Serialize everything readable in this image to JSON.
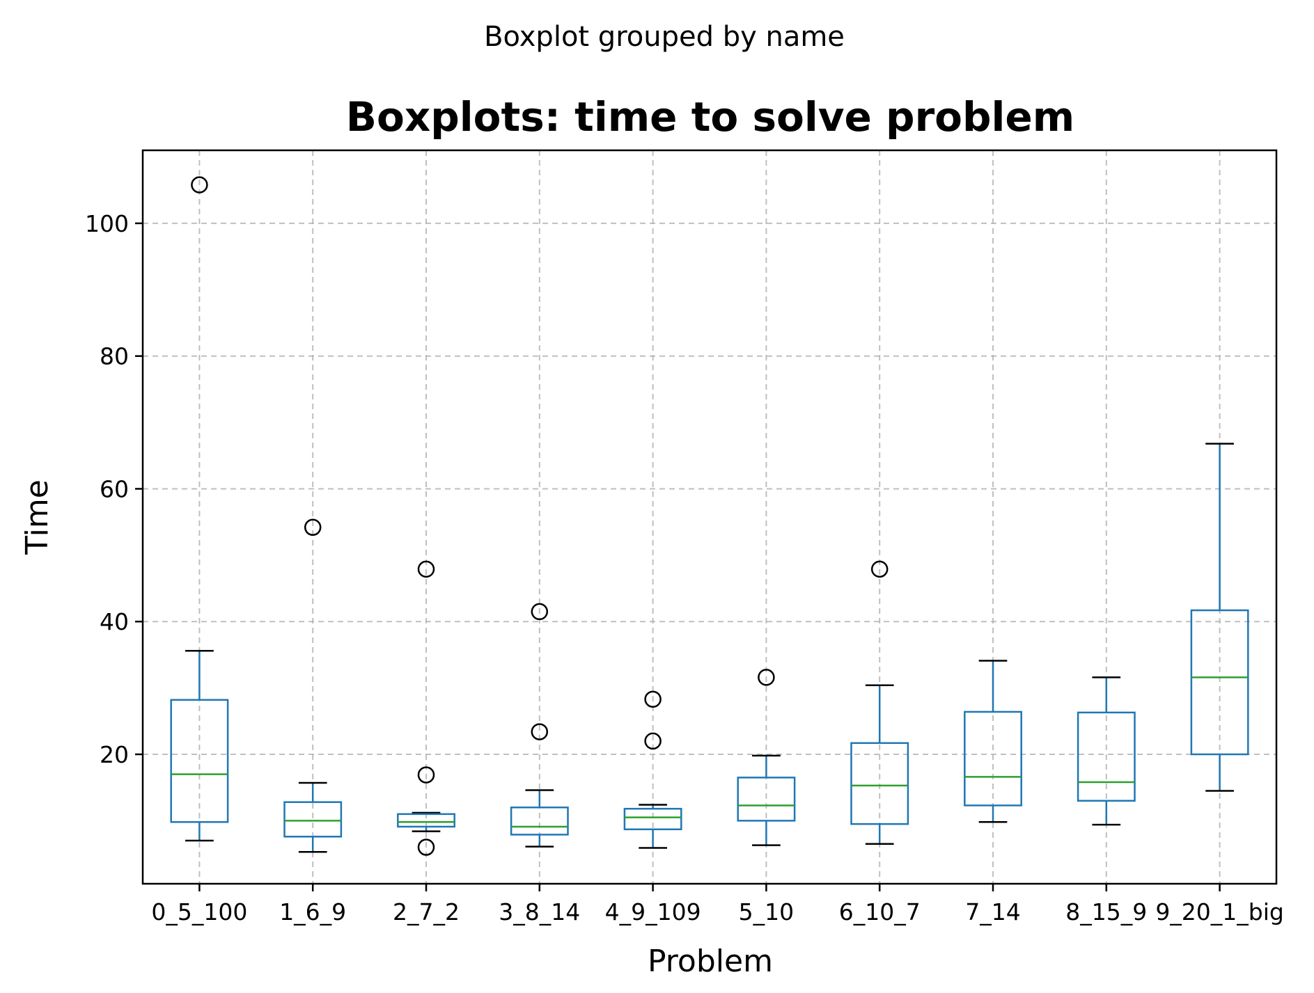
{
  "chart_data": {
    "type": "boxplot",
    "suptitle": "Boxplot grouped by name",
    "title": "Boxplots: time to solve problem",
    "xlabel": "Problem",
    "ylabel": "Time",
    "ylim": [
      0.5,
      111
    ],
    "yticks": [
      20,
      40,
      60,
      80,
      100
    ],
    "grid": true,
    "colors": {
      "box": "#1f77b4",
      "median": "#2ca02c",
      "whisker": "#1f77b4",
      "cap": "#000000",
      "flier": "#000000",
      "grid": "#b0b0b0"
    },
    "categories": [
      "0_5_100",
      "1_6_9",
      "2_7_2",
      "3_8_14",
      "4_9_109",
      "5_10",
      "6_10_7",
      "7_14",
      "8_15_9",
      "9_20_1_big"
    ],
    "boxes": [
      {
        "category": "0_5_100",
        "whislo": 7.0,
        "q1": 9.8,
        "med": 17.0,
        "q3": 28.2,
        "whishi": 35.6,
        "fliers": [
          105.8
        ]
      },
      {
        "category": "1_6_9",
        "whislo": 5.3,
        "q1": 7.6,
        "med": 10.0,
        "q3": 12.8,
        "whishi": 15.7,
        "fliers": [
          54.2
        ]
      },
      {
        "category": "2_7_2",
        "whislo": 8.4,
        "q1": 9.1,
        "med": 9.8,
        "q3": 11.0,
        "whishi": 11.2,
        "fliers": [
          47.9,
          16.9,
          6.0
        ]
      },
      {
        "category": "3_8_14",
        "whislo": 6.1,
        "q1": 7.9,
        "med": 9.1,
        "q3": 12.0,
        "whishi": 14.6,
        "fliers": [
          41.5,
          23.4
        ]
      },
      {
        "category": "4_9_109",
        "whislo": 5.9,
        "q1": 8.7,
        "med": 10.5,
        "q3": 11.8,
        "whishi": 12.4,
        "fliers": [
          28.3,
          22.0
        ]
      },
      {
        "category": "5_10",
        "whislo": 6.3,
        "q1": 10.0,
        "med": 12.3,
        "q3": 16.5,
        "whishi": 19.8,
        "fliers": [
          31.6
        ]
      },
      {
        "category": "6_10_7",
        "whislo": 6.5,
        "q1": 9.5,
        "med": 15.3,
        "q3": 21.7,
        "whishi": 30.4,
        "fliers": [
          47.9
        ]
      },
      {
        "category": "7_14",
        "whislo": 9.8,
        "q1": 12.3,
        "med": 16.6,
        "q3": 26.4,
        "whishi": 34.1,
        "fliers": []
      },
      {
        "category": "8_15_9",
        "whislo": 9.4,
        "q1": 13.0,
        "med": 15.8,
        "q3": 26.3,
        "whishi": 31.6,
        "fliers": []
      },
      {
        "category": "9_20_1_big",
        "whislo": 14.5,
        "q1": 20.0,
        "med": 31.6,
        "q3": 41.7,
        "whishi": 66.8,
        "fliers": []
      }
    ]
  }
}
